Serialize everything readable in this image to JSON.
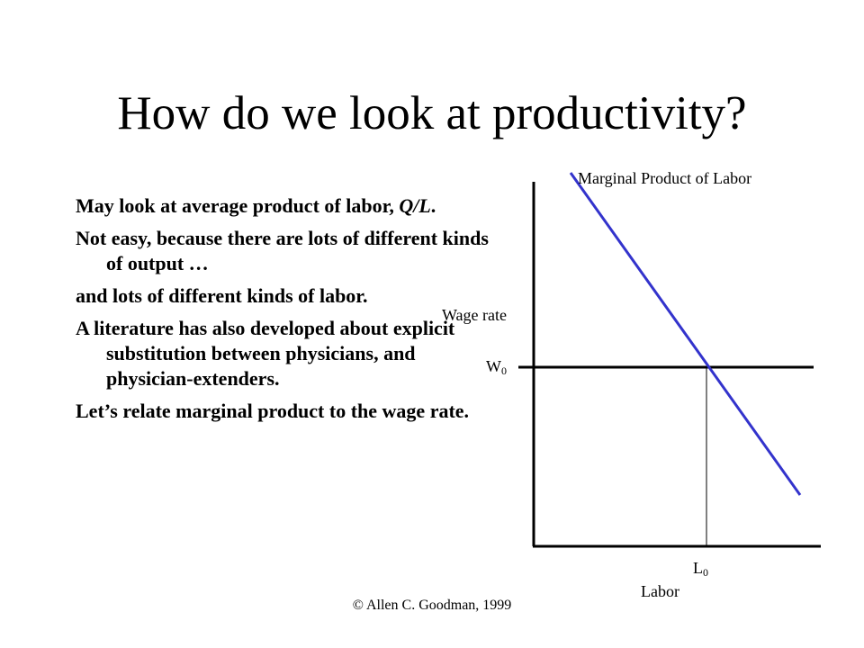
{
  "slide": {
    "title": "How do we look at productivity?",
    "bullets": [
      {
        "text": "May look at average product of labor, ",
        "italic": "Q/L",
        "tail": "."
      },
      {
        "text": "Not easy, because there are lots of different kinds of output …"
      },
      {
        "text": "and lots of different kinds of labor."
      },
      {
        "text": "A literature has also developed about explicit substitution between physicians, and physician-extenders."
      },
      {
        "text": "Let’s relate marginal product to the wage rate."
      }
    ],
    "footer": "© Allen C. Goodman, 1999"
  },
  "graph": {
    "curve_label": "Marginal Product of Labor",
    "y_axis_label": "Wage rate",
    "wage_label": "W",
    "wage_sub": "0",
    "labor_label": "L",
    "labor_sub": "0",
    "x_axis_label": "Labor",
    "curve_color": "#3333cc",
    "axis_color": "#000000"
  }
}
